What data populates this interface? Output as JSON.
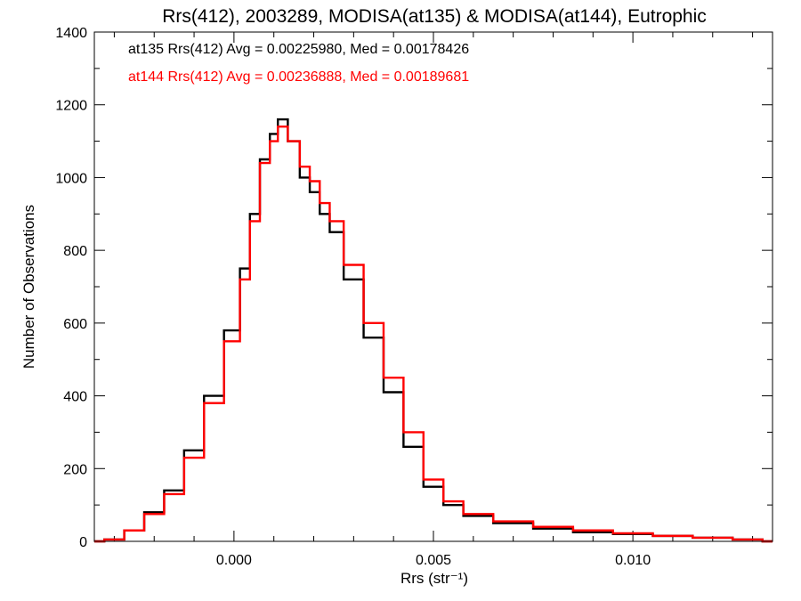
{
  "chart_data": {
    "type": "line",
    "title": "Rrs(412), 2003289, MODISA(at135) & MODISA(at144), Eutrophic",
    "xlabel": "Rrs (str⁻¹)",
    "ylabel": "Number of Observations",
    "xlim": [
      -0.0035,
      0.0135
    ],
    "ylim": [
      0,
      1400
    ],
    "xticks": [
      0.0,
      0.005,
      0.01
    ],
    "xtick_labels": [
      "0.000",
      "0.005",
      "0.010"
    ],
    "yticks": [
      0,
      200,
      400,
      600,
      800,
      1000,
      1200,
      1400
    ],
    "ytick_labels": [
      "0",
      "200",
      "400",
      "600",
      "800",
      "1000",
      "1200",
      "1400"
    ],
    "grid": false,
    "legend_position": "top-left",
    "series": [
      {
        "name": "at135",
        "annotation": "at135 Rrs(412) Avg = 0.00225980, Med = 0.00178426",
        "color": "#000000",
        "x": [
          -0.0035,
          -0.003,
          -0.0025,
          -0.002,
          -0.0015,
          -0.001,
          -0.0005,
          0.0,
          0.0003,
          0.0005,
          0.0008,
          0.001,
          0.0012,
          0.0015,
          0.0018,
          0.002,
          0.0023,
          0.0025,
          0.003,
          0.0035,
          0.004,
          0.0045,
          0.005,
          0.0055,
          0.006,
          0.007,
          0.008,
          0.009,
          0.01,
          0.011,
          0.012,
          0.013,
          0.0135
        ],
        "values": [
          0,
          5,
          30,
          80,
          140,
          250,
          400,
          580,
          750,
          900,
          1050,
          1120,
          1160,
          1100,
          1000,
          960,
          900,
          850,
          720,
          560,
          410,
          260,
          150,
          100,
          70,
          50,
          35,
          25,
          20,
          15,
          10,
          5,
          0
        ]
      },
      {
        "name": "at144",
        "annotation": "at144 Rrs(412) Avg = 0.00236888, Med = 0.00189681",
        "color": "#ff0000",
        "x": [
          -0.0035,
          -0.003,
          -0.0025,
          -0.002,
          -0.0015,
          -0.001,
          -0.0005,
          0.0,
          0.0003,
          0.0005,
          0.0008,
          0.001,
          0.0012,
          0.0015,
          0.0018,
          0.002,
          0.0023,
          0.0025,
          0.003,
          0.0035,
          0.004,
          0.0045,
          0.005,
          0.0055,
          0.006,
          0.007,
          0.008,
          0.009,
          0.01,
          0.011,
          0.012,
          0.013,
          0.0135
        ],
        "values": [
          0,
          5,
          30,
          75,
          130,
          230,
          380,
          550,
          720,
          880,
          1040,
          1100,
          1140,
          1100,
          1030,
          990,
          930,
          880,
          760,
          600,
          450,
          300,
          170,
          110,
          75,
          55,
          40,
          30,
          22,
          15,
          10,
          5,
          0
        ]
      }
    ]
  }
}
